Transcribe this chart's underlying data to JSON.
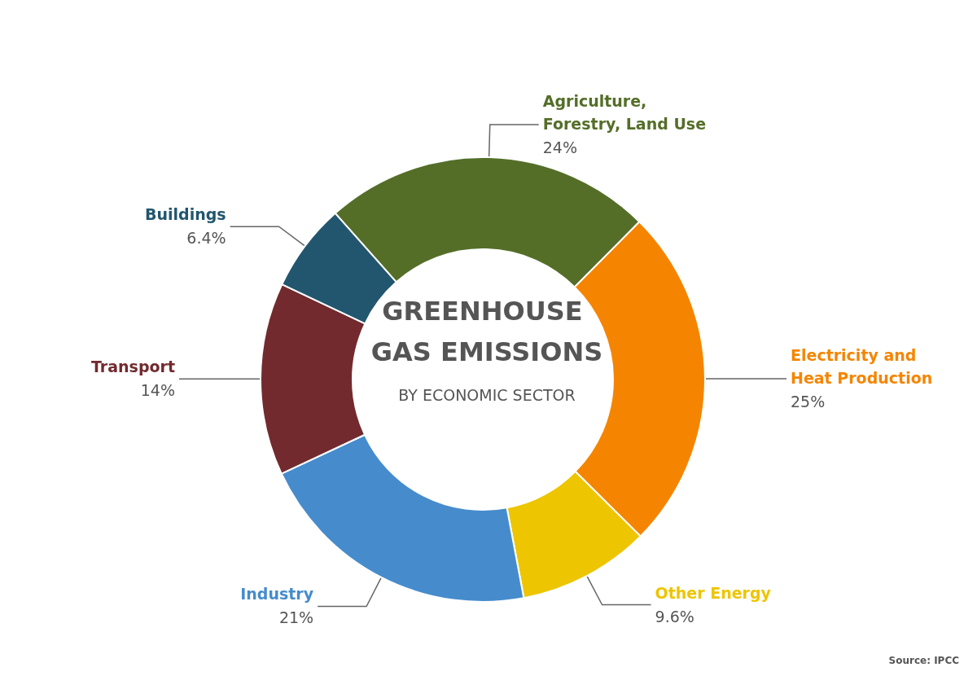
{
  "chart_data": {
    "type": "donut",
    "title": "GREENHOUSE GAS EMISSIONS",
    "subtitle": "BY ECONOMIC SECTOR",
    "categories": [
      "Agriculture, Forestry, Land Use",
      "Electricity and Heat Production",
      "Other Energy",
      "Industry",
      "Transport",
      "Buildings"
    ],
    "values": [
      24,
      25,
      9.6,
      21,
      14,
      6.4
    ],
    "value_labels": [
      "24%",
      "25%",
      "9.6%",
      "21%",
      "14%",
      "6.4%"
    ],
    "colors": [
      "#546e28",
      "#f58500",
      "#edc500",
      "#468ccc",
      "#722a2e",
      "#22566e"
    ],
    "annotations": [
      "Source: IPCC"
    ],
    "legend": false
  }
}
